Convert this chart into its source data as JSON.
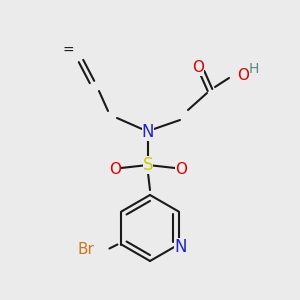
{
  "bg_color": "#ebebeb",
  "bond_color": "#1a1a1a",
  "bond_width": 1.5,
  "colors": {
    "N": "#2222cc",
    "O": "#dd0000",
    "S": "#cccc00",
    "Br": "#cc7722",
    "H": "#558888",
    "C": "#1a1a1a"
  },
  "font_size": 11,
  "font_size_small": 9
}
